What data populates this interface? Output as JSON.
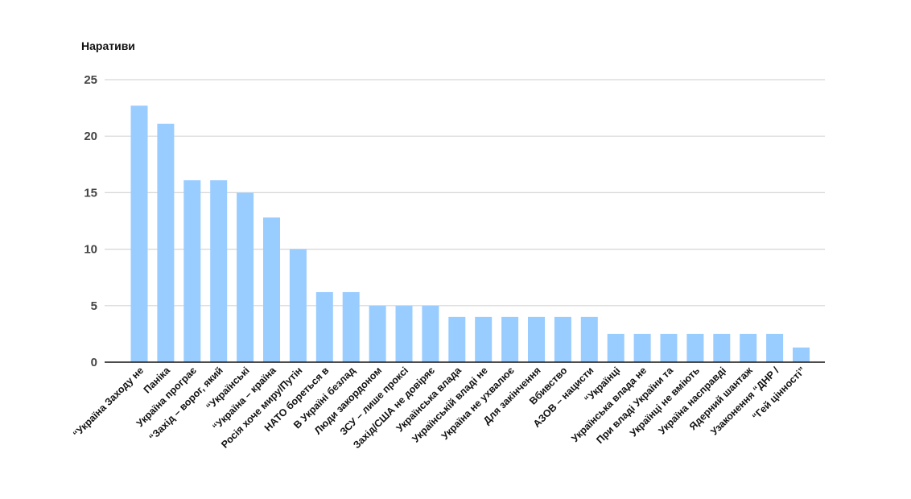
{
  "chart_data": {
    "type": "bar",
    "title": "Наративи",
    "xlabel": "",
    "ylabel": "",
    "ylim": [
      0,
      25
    ],
    "yticks": [
      0,
      5,
      10,
      15,
      20,
      25
    ],
    "grid": true,
    "bar_color": "#99CCFF",
    "categories": [
      "“Україна Заходу не",
      "Паніка",
      "Україна програє",
      "“Захід – ворог, який",
      "“Українські",
      "“Україна – країна",
      "Росія хоче миру/Путін",
      "НАТО бореться в",
      "В Україні безлад",
      "Люди закордоном",
      "ЗСУ – лише проксі",
      "Захід/США не довіряє",
      "Українська влада",
      "Українській владі не",
      "Україна не ухвалює",
      "Для закінчення",
      "Вбивство",
      "АЗОВ – нацисти",
      "“Українці",
      "Українська влада не",
      "При владі України та",
      "Українці не вміють",
      "Україна насправді",
      "Ядерний шантаж",
      "Узаконення “ДНР /",
      "“Гей цінності”"
    ],
    "values": [
      22.7,
      21.1,
      16.1,
      16.1,
      15.0,
      12.8,
      10.0,
      6.2,
      6.2,
      5.0,
      5.0,
      5.0,
      4.0,
      4.0,
      4.0,
      4.0,
      4.0,
      4.0,
      2.5,
      2.5,
      2.5,
      2.5,
      2.5,
      2.5,
      2.5,
      1.3
    ]
  }
}
